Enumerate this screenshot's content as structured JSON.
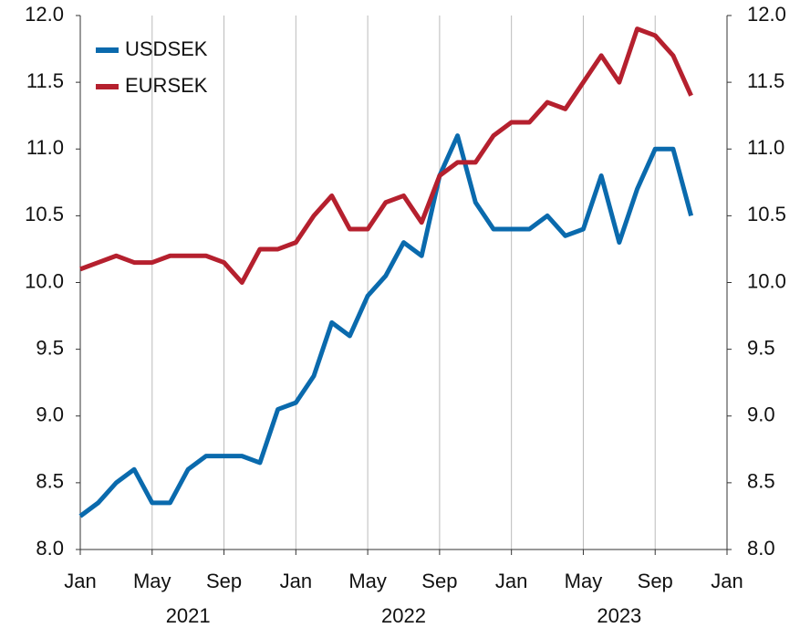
{
  "chart_data": {
    "type": "line",
    "x": [
      "2021-01",
      "2021-02",
      "2021-03",
      "2021-04",
      "2021-05",
      "2021-06",
      "2021-07",
      "2021-08",
      "2021-09",
      "2021-10",
      "2021-11",
      "2021-12",
      "2022-01",
      "2022-02",
      "2022-03",
      "2022-04",
      "2022-05",
      "2022-06",
      "2022-07",
      "2022-08",
      "2022-09",
      "2022-10",
      "2022-11",
      "2022-12",
      "2023-01",
      "2023-02",
      "2023-03",
      "2023-04",
      "2023-05",
      "2023-06",
      "2023-07",
      "2023-08",
      "2023-09",
      "2023-10",
      "2023-11"
    ],
    "series": [
      {
        "name": "USDSEK",
        "color": "#0a6aad",
        "values": [
          8.25,
          8.35,
          8.5,
          8.6,
          8.35,
          8.35,
          8.6,
          8.7,
          8.7,
          8.7,
          8.65,
          9.05,
          9.1,
          9.3,
          9.7,
          9.6,
          9.9,
          10.05,
          10.3,
          10.2,
          10.8,
          11.1,
          10.6,
          10.4,
          10.4,
          10.4,
          10.5,
          10.35,
          10.4,
          10.8,
          10.3,
          10.7,
          11.0,
          11.0,
          10.5
        ]
      },
      {
        "name": "EURSEK",
        "color": "#b5202e",
        "values": [
          10.1,
          10.15,
          10.2,
          10.15,
          10.15,
          10.2,
          10.2,
          10.2,
          10.15,
          10.0,
          10.25,
          10.25,
          10.3,
          10.5,
          10.65,
          10.4,
          10.4,
          10.6,
          10.65,
          10.45,
          10.8,
          10.9,
          10.9,
          11.1,
          11.2,
          11.2,
          11.35,
          11.3,
          11.5,
          11.7,
          11.5,
          11.9,
          11.85,
          11.7,
          11.4
        ]
      }
    ],
    "xlim": [
      "2021-01",
      "2024-01"
    ],
    "xticks": [
      {
        "value": "2021-01",
        "label": "Jan"
      },
      {
        "value": "2021-05",
        "label": "May"
      },
      {
        "value": "2021-09",
        "label": "Sep"
      },
      {
        "value": "2022-01",
        "label": "Jan"
      },
      {
        "value": "2022-05",
        "label": "May"
      },
      {
        "value": "2022-09",
        "label": "Sep"
      },
      {
        "value": "2023-01",
        "label": "Jan"
      },
      {
        "value": "2023-05",
        "label": "May"
      },
      {
        "value": "2023-09",
        "label": "Sep"
      },
      {
        "value": "2024-01",
        "label": "Jan"
      }
    ],
    "years": [
      "2021",
      "2022",
      "2023"
    ],
    "ylim": [
      8,
      12
    ],
    "yticks": [
      {
        "value": 8,
        "label": "8.0"
      },
      {
        "value": 8.5,
        "label": "8.5"
      },
      {
        "value": 9,
        "label": "9.0"
      },
      {
        "value": 9.5,
        "label": "9.5"
      },
      {
        "value": 10,
        "label": "10.0"
      },
      {
        "value": 10.5,
        "label": "10.5"
      },
      {
        "value": 11,
        "label": "11.0"
      },
      {
        "value": 11.5,
        "label": "11.5"
      },
      {
        "value": 12,
        "label": "12.0"
      }
    ],
    "y2lim": [
      8,
      12
    ],
    "y2ticks": [
      {
        "value": 8,
        "label": "8.0"
      },
      {
        "value": 8.5,
        "label": "8.5"
      },
      {
        "value": 9,
        "label": "9.0"
      },
      {
        "value": 9.5,
        "label": "9.5"
      },
      {
        "value": 10,
        "label": "10.0"
      },
      {
        "value": 10.5,
        "label": "10.5"
      },
      {
        "value": 11,
        "label": "11.0"
      },
      {
        "value": 11.5,
        "label": "11.5"
      },
      {
        "value": 12,
        "label": "12.0"
      }
    ],
    "grid": "x",
    "legend": "upper left"
  }
}
